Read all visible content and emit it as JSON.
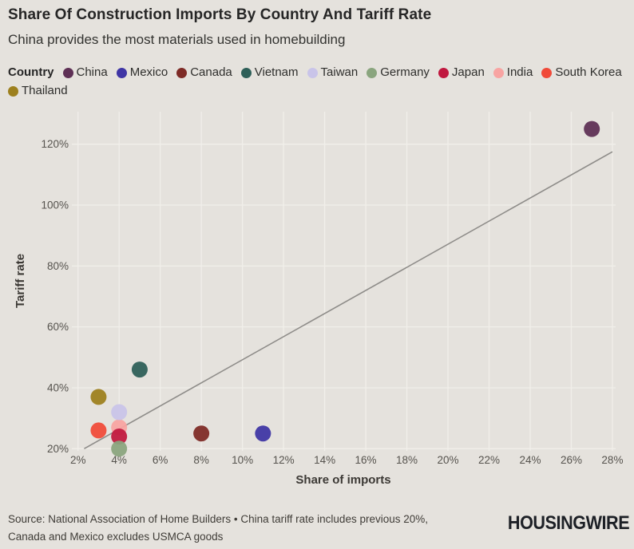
{
  "header": {
    "title": "Share Of Construction Imports By Country And Tariff Rate",
    "subtitle": "China provides the most materials used in homebuilding"
  },
  "legend": {
    "title": "Country",
    "items": [
      {
        "label": "China",
        "color": "#5e3055"
      },
      {
        "label": "Mexico",
        "color": "#3f35a5"
      },
      {
        "label": "Canada",
        "color": "#7e2b26"
      },
      {
        "label": "Vietnam",
        "color": "#2e5f58"
      },
      {
        "label": "Taiwan",
        "color": "#c9c4e9"
      },
      {
        "label": "Germany",
        "color": "#8aa57e"
      },
      {
        "label": "Japan",
        "color": "#c0183f"
      },
      {
        "label": "India",
        "color": "#f8a4a2"
      },
      {
        "label": "South Korea",
        "color": "#f04a39"
      },
      {
        "label": "Thailand",
        "color": "#9d801e"
      }
    ]
  },
  "chart_data": {
    "type": "scatter",
    "title": "Share Of Construction Imports By Country And Tariff Rate",
    "subtitle": "China provides the most materials used in homebuilding",
    "xlabel": "Share of imports",
    "ylabel": "Tariff rate",
    "x_tick_values": [
      2,
      4,
      6,
      8,
      10,
      12,
      14,
      16,
      18,
      20,
      22,
      24,
      26,
      28
    ],
    "x_tick_labels": [
      "2%",
      "4%",
      "6%",
      "8%",
      "10%",
      "12%",
      "14%",
      "16%",
      "18%",
      "20%",
      "22%",
      "24%",
      "26%",
      "28%"
    ],
    "y_tick_values": [
      20,
      40,
      60,
      80,
      100,
      120
    ],
    "y_tick_labels": [
      "20%",
      "40%",
      "60%",
      "80%",
      "100%",
      "120%"
    ],
    "xlim": [
      1.7,
      28.2
    ],
    "ylim": [
      19,
      131
    ],
    "grid": true,
    "legend_position": "top",
    "points": [
      {
        "country": "China",
        "share_pct": 27,
        "tariff_pct": 125,
        "color": "#5e3055"
      },
      {
        "country": "Mexico",
        "share_pct": 11,
        "tariff_pct": 25,
        "color": "#3f35a5"
      },
      {
        "country": "Canada",
        "share_pct": 8,
        "tariff_pct": 25,
        "color": "#7e2b26"
      },
      {
        "country": "Vietnam",
        "share_pct": 5,
        "tariff_pct": 46,
        "color": "#2e5f58"
      },
      {
        "country": "Taiwan",
        "share_pct": 4,
        "tariff_pct": 32,
        "color": "#c9c4e9"
      },
      {
        "country": "Germany",
        "share_pct": 4,
        "tariff_pct": 20,
        "color": "#8aa57e"
      },
      {
        "country": "Japan",
        "share_pct": 4,
        "tariff_pct": 24,
        "color": "#c0183f"
      },
      {
        "country": "India",
        "share_pct": 4,
        "tariff_pct": 27,
        "color": "#f8a4a2"
      },
      {
        "country": "South Korea",
        "share_pct": 3,
        "tariff_pct": 26,
        "color": "#f04a39"
      },
      {
        "country": "Thailand",
        "share_pct": 3,
        "tariff_pct": 37,
        "color": "#9d801e"
      }
    ],
    "reference_line": {
      "x1": 2.3,
      "y1": 20,
      "x2": 28,
      "y2": 117.5
    }
  },
  "footer": {
    "source_line1": "Source: National Association of Home Builders • China tariff rate includes previous 20%,",
    "source_line2": "Canada and Mexico excludes USMCA goods",
    "brand": "HOUSINGWIRE"
  },
  "colors": {
    "background": "#e5e2dd",
    "gridline": "#f1efea",
    "reference_line": "#8e8c89",
    "axis_text": "#56534e",
    "axis_title": "#3c3935"
  }
}
